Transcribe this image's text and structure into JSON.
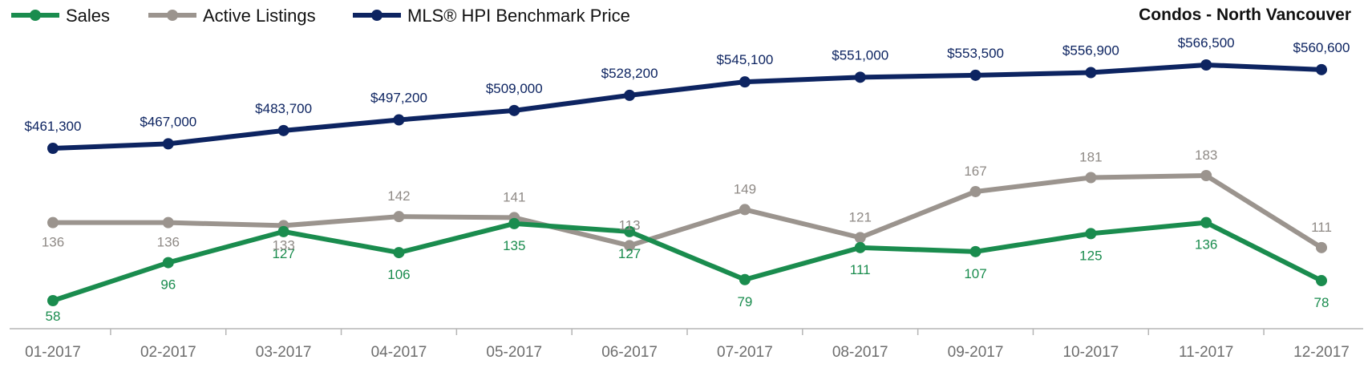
{
  "chart_data": {
    "type": "line",
    "title": "Condos - North Vancouver",
    "categories": [
      "01-2017",
      "02-2017",
      "03-2017",
      "04-2017",
      "05-2017",
      "06-2017",
      "07-2017",
      "08-2017",
      "09-2017",
      "10-2017",
      "11-2017",
      "12-2017"
    ],
    "series": [
      {
        "name": "Sales",
        "color": "#1a8c4e",
        "axis": "left",
        "values": [
          58,
          96,
          127,
          106,
          135,
          127,
          79,
          111,
          107,
          125,
          136,
          78
        ],
        "labels": [
          "58",
          "96",
          "127",
          "106",
          "135",
          "127",
          "79",
          "111",
          "107",
          "125",
          "136",
          "78"
        ]
      },
      {
        "name": "Active Listings",
        "color": "#9b948e",
        "axis": "left",
        "values": [
          136,
          136,
          133,
          142,
          141,
          113,
          149,
          121,
          167,
          181,
          183,
          111
        ],
        "labels": [
          "136",
          "136",
          "133",
          "142",
          "141",
          "113",
          "149",
          "121",
          "167",
          "181",
          "183",
          "111"
        ]
      },
      {
        "name": "MLS® HPI Benchmark Price",
        "color": "#0d2461",
        "axis": "right",
        "values": [
          461300,
          467000,
          483700,
          497200,
          509000,
          528200,
          545100,
          551000,
          553500,
          556900,
          566500,
          560600
        ],
        "labels": [
          "$461,300",
          "$467,000",
          "$483,700",
          "$497,200",
          "$509,000",
          "$528,200",
          "$545,100",
          "$551,000",
          "$553,500",
          "$556,900",
          "$566,500",
          "$560,600"
        ]
      }
    ],
    "legend_position": "top-left",
    "grid": false
  }
}
